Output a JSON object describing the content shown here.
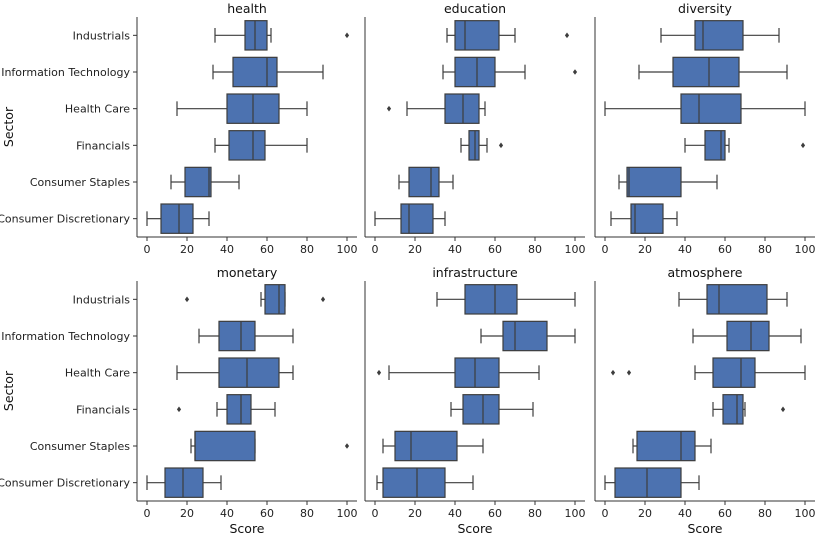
{
  "chart_data": {
    "type": "boxplot",
    "orientation": "horizontal",
    "layout": "facet-grid-2x3",
    "box_color": "#4c72b0",
    "categories": [
      "Industrials",
      "Information Technology",
      "Health Care",
      "Financials",
      "Consumer Staples",
      "Consumer Discretionary"
    ],
    "ylabel": "Sector",
    "xlabel": "Score",
    "xticks": [
      0,
      20,
      40,
      60,
      80,
      100
    ],
    "xlim": [
      -5,
      105
    ],
    "panels": [
      {
        "title": "health",
        "boxes": [
          {
            "min": 34,
            "q1": 49,
            "median": 54,
            "q3": 60,
            "max": 62,
            "outliers": [
              100
            ]
          },
          {
            "min": 33,
            "q1": 43,
            "median": 60,
            "q3": 65,
            "max": 88,
            "outliers": []
          },
          {
            "min": 15,
            "q1": 40,
            "median": 53,
            "q3": 66,
            "max": 80,
            "outliers": []
          },
          {
            "min": 34,
            "q1": 41,
            "median": 53,
            "q3": 59,
            "max": 80,
            "outliers": []
          },
          {
            "min": 12,
            "q1": 19,
            "median": 31,
            "q3": 32,
            "max": 46,
            "outliers": []
          },
          {
            "min": 0,
            "q1": 7,
            "median": 16,
            "q3": 23,
            "max": 31,
            "outliers": []
          }
        ]
      },
      {
        "title": "education",
        "boxes": [
          {
            "min": 36,
            "q1": 40,
            "median": 45,
            "q3": 62,
            "max": 70,
            "outliers": [
              96
            ]
          },
          {
            "min": 34,
            "q1": 40,
            "median": 51,
            "q3": 60,
            "max": 75,
            "outliers": [
              100
            ]
          },
          {
            "min": 16,
            "q1": 35,
            "median": 44,
            "q3": 52,
            "max": 55,
            "outliers": [
              7
            ]
          },
          {
            "min": 43,
            "q1": 47,
            "median": 50,
            "q3": 52,
            "max": 56,
            "outliers": [
              63
            ]
          },
          {
            "min": 12,
            "q1": 17,
            "median": 28,
            "q3": 32,
            "max": 39,
            "outliers": []
          },
          {
            "min": 0,
            "q1": 13,
            "median": 17,
            "q3": 29,
            "max": 35,
            "outliers": []
          }
        ]
      },
      {
        "title": "diversity",
        "boxes": [
          {
            "min": 28,
            "q1": 45,
            "median": 49,
            "q3": 69,
            "max": 87,
            "outliers": []
          },
          {
            "min": 17,
            "q1": 34,
            "median": 52,
            "q3": 67,
            "max": 91,
            "outliers": []
          },
          {
            "min": 0,
            "q1": 38,
            "median": 47,
            "q3": 68,
            "max": 100,
            "outliers": []
          },
          {
            "min": 40,
            "q1": 50,
            "median": 58,
            "q3": 60,
            "max": 62,
            "outliers": [
              99
            ]
          },
          {
            "min": 7,
            "q1": 11,
            "median": 12,
            "q3": 38,
            "max": 56,
            "outliers": []
          },
          {
            "min": 3,
            "q1": 13,
            "median": 15,
            "q3": 29,
            "max": 36,
            "outliers": []
          }
        ]
      },
      {
        "title": "monetary",
        "boxes": [
          {
            "min": 57,
            "q1": 59,
            "median": 66,
            "q3": 69,
            "max": 69,
            "outliers": [
              20,
              88
            ]
          },
          {
            "min": 26,
            "q1": 36,
            "median": 47,
            "q3": 54,
            "max": 73,
            "outliers": []
          },
          {
            "min": 15,
            "q1": 36,
            "median": 50,
            "q3": 66,
            "max": 73,
            "outliers": []
          },
          {
            "min": 35,
            "q1": 40,
            "median": 47,
            "q3": 52,
            "max": 64,
            "outliers": [
              16
            ]
          },
          {
            "min": 22,
            "q1": 24,
            "median": 24,
            "q3": 54,
            "max": 54,
            "outliers": [
              100
            ]
          },
          {
            "min": 0,
            "q1": 9,
            "median": 18,
            "q3": 28,
            "max": 37,
            "outliers": []
          }
        ]
      },
      {
        "title": "infrastructure",
        "boxes": [
          {
            "min": 31,
            "q1": 45,
            "median": 60,
            "q3": 71,
            "max": 100,
            "outliers": []
          },
          {
            "min": 53,
            "q1": 64,
            "median": 70,
            "q3": 86,
            "max": 100,
            "outliers": []
          },
          {
            "min": 7,
            "q1": 40,
            "median": 50,
            "q3": 62,
            "max": 82,
            "outliers": [
              2
            ]
          },
          {
            "min": 38,
            "q1": 44,
            "median": 54,
            "q3": 62,
            "max": 79,
            "outliers": []
          },
          {
            "min": 4,
            "q1": 10,
            "median": 18,
            "q3": 41,
            "max": 54,
            "outliers": []
          },
          {
            "min": 1,
            "q1": 4,
            "median": 21,
            "q3": 35,
            "max": 49,
            "outliers": []
          }
        ]
      },
      {
        "title": "atmosphere",
        "boxes": [
          {
            "min": 37,
            "q1": 51,
            "median": 57,
            "q3": 81,
            "max": 91,
            "outliers": []
          },
          {
            "min": 44,
            "q1": 61,
            "median": 73,
            "q3": 82,
            "max": 98,
            "outliers": []
          },
          {
            "min": 45,
            "q1": 54,
            "median": 68,
            "q3": 75,
            "max": 100,
            "outliers": [
              4,
              12
            ]
          },
          {
            "min": 54,
            "q1": 59,
            "median": 66,
            "q3": 69,
            "max": 70,
            "outliers": [
              89
            ]
          },
          {
            "min": 14,
            "q1": 16,
            "median": 38,
            "q3": 45,
            "max": 53,
            "outliers": []
          },
          {
            "min": 0,
            "q1": 5,
            "median": 21,
            "q3": 38,
            "max": 47,
            "outliers": []
          }
        ]
      }
    ]
  }
}
